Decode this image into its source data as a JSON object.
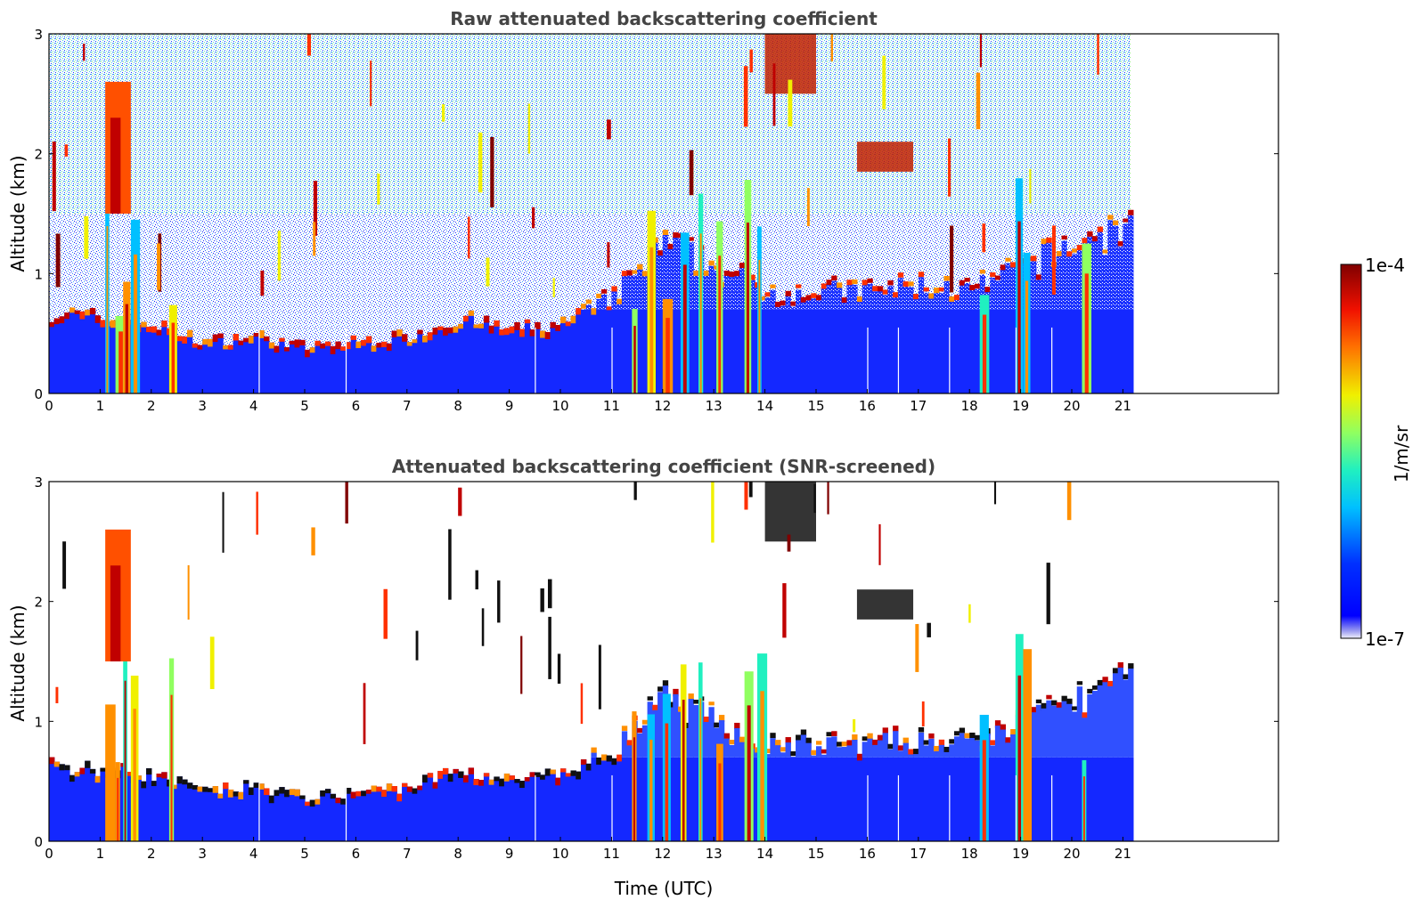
{
  "chart_data": [
    {
      "type": "heatmap",
      "title": "Raw attenuated backscattering coefficient",
      "xlabel": "",
      "ylabel": "Altitude (km)",
      "xlim": [
        0,
        24
      ],
      "ylim": [
        0,
        3
      ],
      "x_ticks": [
        "0",
        "1",
        "2",
        "3",
        "4",
        "5",
        "6",
        "7",
        "8",
        "9",
        "10",
        "11",
        "12",
        "13",
        "14",
        "15",
        "16",
        "17",
        "18",
        "19",
        "20",
        "21"
      ],
      "y_ticks": [
        "0",
        "1",
        "2",
        "3"
      ],
      "data_end_time": 21.15,
      "boundary_layer_top_km": [
        {
          "t": 0,
          "z": 0.7
        },
        {
          "t": 2,
          "z": 0.6
        },
        {
          "t": 3,
          "z": 0.45
        },
        {
          "t": 4,
          "z": 0.5
        },
        {
          "t": 5,
          "z": 0.4
        },
        {
          "t": 7,
          "z": 0.5
        },
        {
          "t": 8,
          "z": 0.65
        },
        {
          "t": 9,
          "z": 0.55
        },
        {
          "t": 10,
          "z": 0.6
        },
        {
          "t": 11,
          "z": 0.85
        },
        {
          "t": 12,
          "z": 1.3
        },
        {
          "t": 13,
          "z": 1.1
        },
        {
          "t": 14,
          "z": 0.9
        },
        {
          "t": 16,
          "z": 0.9
        },
        {
          "t": 17,
          "z": 0.95
        },
        {
          "t": 18,
          "z": 0.9
        },
        {
          "t": 19,
          "z": 1.1
        },
        {
          "t": 20,
          "z": 1.3
        },
        {
          "t": 21,
          "z": 1.45
        }
      ],
      "cloud_columns_utc": [
        1.1,
        1.3,
        1.45,
        1.6,
        2.35,
        11.4,
        11.7,
        12.0,
        12.35,
        12.7,
        13.05,
        13.6,
        13.85,
        18.2,
        18.9,
        19.05,
        20.2
      ],
      "elevated_layers": [
        {
          "t_start": 15.8,
          "t_end": 16.9,
          "z_bottom": 1.85,
          "z_top": 2.1
        },
        {
          "t_start": 14.0,
          "t_end": 15.0,
          "z_bottom": 2.5,
          "z_top": 3.0
        }
      ]
    },
    {
      "type": "heatmap",
      "title": "Attenuated backscattering coefficient (SNR-screened)",
      "xlabel": "Time (UTC)",
      "ylabel": "Altitude (km)",
      "xlim": [
        0,
        24
      ],
      "ylim": [
        0,
        3
      ],
      "x_ticks": [
        "0",
        "1",
        "2",
        "3",
        "4",
        "5",
        "6",
        "7",
        "8",
        "9",
        "10",
        "11",
        "12",
        "13",
        "14",
        "15",
        "16",
        "17",
        "18",
        "19",
        "20",
        "21"
      ],
      "y_ticks": [
        "0",
        "1",
        "2",
        "3"
      ],
      "data_end_time": 21.15
    }
  ],
  "colorbar": {
    "min_label": "1e-7",
    "max_label": "1e-4",
    "label": "1/m/sr",
    "scale": "log",
    "colormap": "jet"
  }
}
